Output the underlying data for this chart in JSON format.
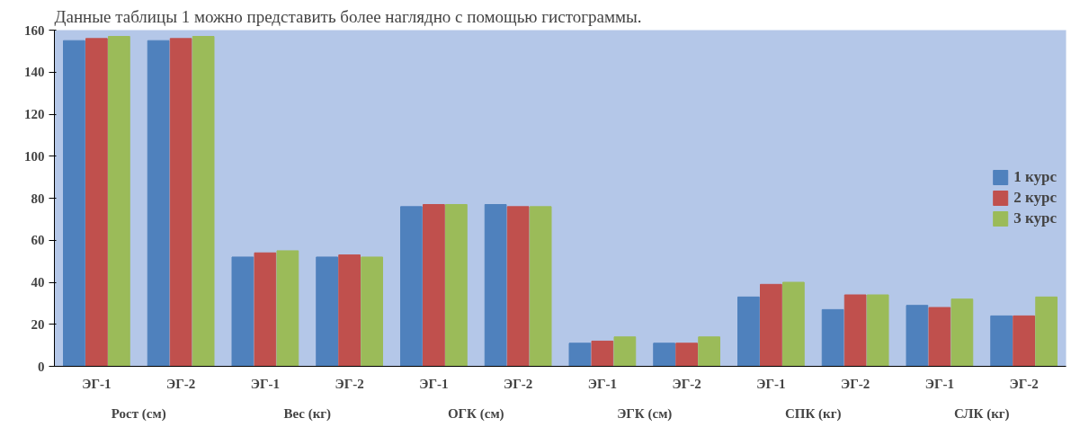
{
  "chart_data": {
    "type": "bar",
    "title": "Данные таблицы 1 можно представить более наглядно с помощью гистограммы.",
    "categories": [
      "ЭГ-1",
      "ЭГ-2",
      "ЭГ-1",
      "ЭГ-2",
      "ЭГ-1",
      "ЭГ-2",
      "ЭГ-1",
      "ЭГ-2",
      "ЭГ-1",
      "ЭГ-2",
      "ЭГ-1",
      "ЭГ-2"
    ],
    "annotations": [
      "Рост (см)",
      "Вес (кг)",
      "ОГК (см)",
      "ЭГК (см)",
      "СПК (кг)",
      "СЛК (кг)"
    ],
    "series": [
      {
        "name": "1 курс",
        "color": "#4f81bd",
        "values": [
          155,
          155,
          52,
          52,
          76,
          77,
          11,
          11,
          33,
          27,
          29,
          24
        ]
      },
      {
        "name": "2 курс",
        "color": "#c0504d",
        "values": [
          156,
          156,
          54,
          53,
          77,
          76,
          12,
          11,
          39,
          34,
          28,
          24
        ]
      },
      {
        "name": "3 курс",
        "color": "#9bbb59",
        "values": [
          157,
          157,
          55,
          52,
          77,
          76,
          14,
          14,
          40,
          34,
          32,
          33
        ]
      }
    ],
    "ylim": [
      0,
      160
    ],
    "yticks": [
      0,
      20,
      40,
      60,
      80,
      100,
      120,
      140,
      160
    ],
    "grid": false,
    "legend": "right"
  }
}
